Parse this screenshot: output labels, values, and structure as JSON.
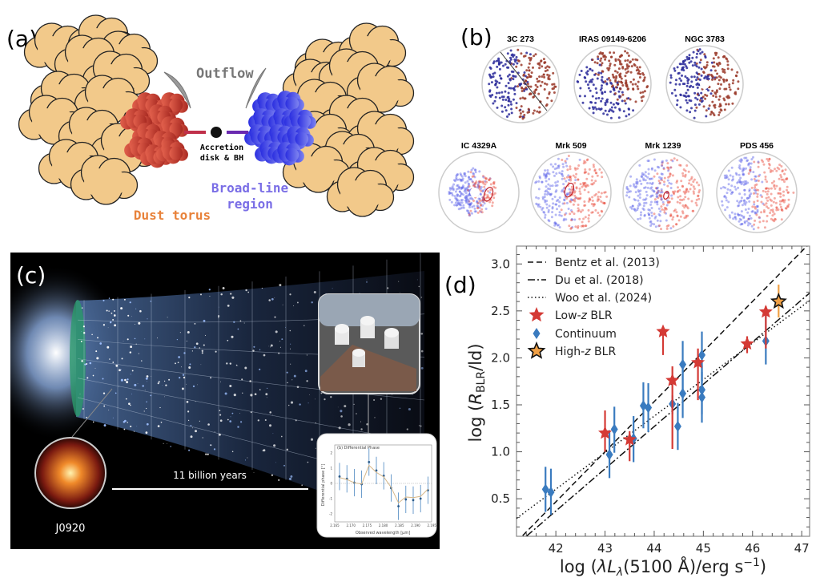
{
  "panel_a": {
    "label": "(a)",
    "outflow": "Outflow",
    "accretion_line1": "Accretion",
    "accretion_line2": "disk & BH",
    "blr_line1": "Broad-line",
    "blr_line2": "region",
    "dust_torus": "Dust torus",
    "colors": {
      "cloud": "#f2c98a",
      "torus_red": "#d2483a",
      "blr_blue": "#3b3fe0",
      "dust_text": "#e8823a",
      "blr_text": "#7a6ee6",
      "outflow": "#9a9a9a"
    }
  },
  "panel_b": {
    "label": "(b)",
    "objects": [
      "3C 273",
      "IRAS 09149-6206",
      "NGC 3783",
      "IC 4329A",
      "Mrk 509",
      "Mrk 1239",
      "PDS 456"
    ]
  },
  "panel_c": {
    "label": "(c)",
    "timeline": "11 billion years",
    "quasar": "J0920",
    "inset_title": "(b) Differential Phase",
    "inset_ylabel": "Differential phase [°]",
    "inset_xlabel": "Observed wavelength [μm]",
    "inset_xticks": [
      "2.165",
      "2.170",
      "2.175",
      "2.180",
      "2.185",
      "2.190",
      "2.195"
    ],
    "inset_yticks": [
      "2",
      "1",
      "0",
      "-1",
      "-2"
    ],
    "inset_points": [
      0.45,
      0.3,
      0.05,
      -0.05,
      1.4,
      0.85,
      0.5,
      -0.3,
      -1.5,
      -1.05,
      -1.1,
      -1.0,
      -0.45
    ]
  },
  "chart_data": {
    "type": "scatter",
    "panel_label": "(d)",
    "xlabel": "log (λL_λ(5100 Å)/erg s⁻¹)",
    "xlabel_parts": {
      "pre": "log (",
      "lam": "λ",
      "L": "L",
      "sub": "λ",
      "mid": "(5100 Å)/erg s",
      "sup": "−1",
      "post": ")"
    },
    "ylabel_parts": {
      "pre": "log (",
      "R": "R",
      "sub": "BLR",
      "post": "/ld)"
    },
    "xlim": [
      41.2,
      47.16
    ],
    "ylim": [
      0.1,
      3.19
    ],
    "xticks": [
      42,
      43,
      44,
      45,
      46,
      47
    ],
    "yticks": [
      "0.5",
      "1.0",
      "1.5",
      "2.0",
      "2.5",
      "3.0"
    ],
    "grid": false,
    "legend_position": "top-left",
    "lines": [
      {
        "name": "Bentz et al. (2013)",
        "style": "dashed",
        "x": [
          41.2,
          47.16
        ],
        "y": [
          0.04,
          3.22
        ]
      },
      {
        "name": "Du et al. (2018)",
        "style": "dashdot",
        "x": [
          41.2,
          47.16
        ],
        "y": [
          0.01,
          2.69
        ]
      },
      {
        "name": "Woo et al. (2024)",
        "style": "dotted",
        "x": [
          41.2,
          47.16
        ],
        "y": [
          0.29,
          2.61
        ]
      }
    ],
    "series": [
      {
        "name": "Low-z BLR",
        "name_parts": [
          "Low-",
          "z",
          " BLR"
        ],
        "marker": "star",
        "color": "#d43a35",
        "points": [
          {
            "x": 43.0,
            "y": 1.2,
            "ylo": 1.0,
            "yhi": 1.44
          },
          {
            "x": 43.5,
            "y": 1.13,
            "ylo": 0.9,
            "yhi": 1.22
          },
          {
            "x": 44.18,
            "y": 2.28,
            "ylo": 2.03,
            "yhi": 2.3
          },
          {
            "x": 44.37,
            "y": 1.76,
            "ylo": 1.03,
            "yhi": 1.91
          },
          {
            "x": 44.89,
            "y": 1.95,
            "ylo": 1.55,
            "yhi": 2.1
          },
          {
            "x": 45.89,
            "y": 2.15,
            "ylo": 2.05,
            "yhi": 2.23
          },
          {
            "x": 46.27,
            "y": 2.49,
            "ylo": 2.1,
            "yhi": 2.55
          }
        ]
      },
      {
        "name": "Continuum",
        "marker": "diamond",
        "color": "#3a7bbf",
        "points": [
          {
            "x": 41.79,
            "y": 0.6,
            "ylo": 0.36,
            "yhi": 0.84
          },
          {
            "x": 41.9,
            "y": 0.57,
            "ylo": 0.33,
            "yhi": 0.82
          },
          {
            "x": 43.09,
            "y": 0.97,
            "ylo": 0.72,
            "yhi": 1.23
          },
          {
            "x": 43.19,
            "y": 1.24,
            "ylo": 0.99,
            "yhi": 1.48
          },
          {
            "x": 43.58,
            "y": 1.14,
            "ylo": 0.89,
            "yhi": 1.38
          },
          {
            "x": 43.78,
            "y": 1.49,
            "ylo": 1.25,
            "yhi": 1.74
          },
          {
            "x": 43.88,
            "y": 1.47,
            "ylo": 1.21,
            "yhi": 1.73
          },
          {
            "x": 44.37,
            "y": 1.51,
            "ylo": 1.4,
            "yhi": 1.6
          },
          {
            "x": 44.48,
            "y": 1.27,
            "ylo": 1.02,
            "yhi": 1.52
          },
          {
            "x": 44.58,
            "y": 1.93,
            "ylo": 1.65,
            "yhi": 2.18
          },
          {
            "x": 44.58,
            "y": 1.62,
            "ylo": 1.36,
            "yhi": 1.88
          },
          {
            "x": 44.97,
            "y": 2.03,
            "ylo": 1.75,
            "yhi": 2.28
          },
          {
            "x": 44.97,
            "y": 1.66,
            "ylo": 1.4,
            "yhi": 1.92
          },
          {
            "x": 44.97,
            "y": 1.58,
            "ylo": 1.31,
            "yhi": 1.85
          },
          {
            "x": 46.27,
            "y": 2.18,
            "ylo": 1.93,
            "yhi": 2.45
          }
        ]
      },
      {
        "name": "High-z BLR",
        "name_parts": [
          "High-",
          "z",
          " BLR"
        ],
        "marker": "star",
        "color": "#f0a045",
        "points": [
          {
            "x": 46.53,
            "y": 2.6,
            "ylo": 2.43,
            "yhi": 2.78
          }
        ]
      }
    ]
  }
}
